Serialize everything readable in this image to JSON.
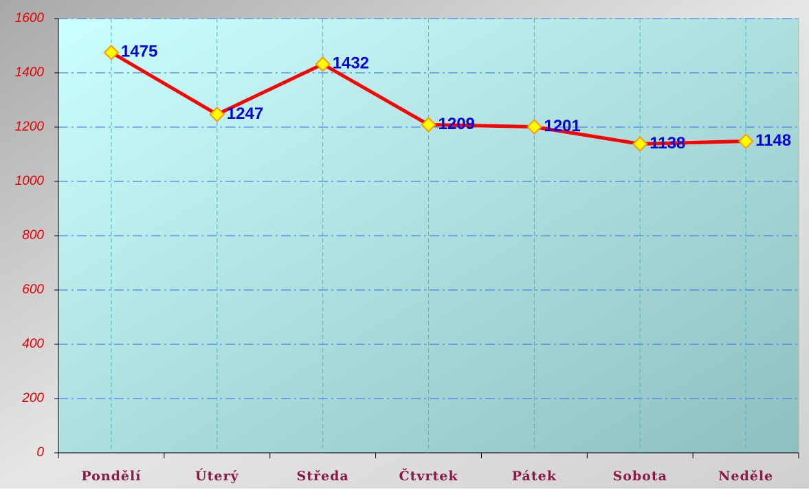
{
  "chart_data": {
    "type": "line",
    "categories": [
      "Pondělí",
      "Úterý",
      "Středa",
      "Čtvrtek",
      "Pátek",
      "Sobota",
      "Neděle"
    ],
    "values": [
      1475,
      1247,
      1432,
      1209,
      1201,
      1138,
      1148
    ],
    "color": "#ff0000",
    "marker_color": "#ffff00",
    "ylim": [
      0,
      1600
    ],
    "yticks": [
      0,
      200,
      400,
      600,
      800,
      1000,
      1200,
      1400,
      1600
    ],
    "grid": true
  }
}
